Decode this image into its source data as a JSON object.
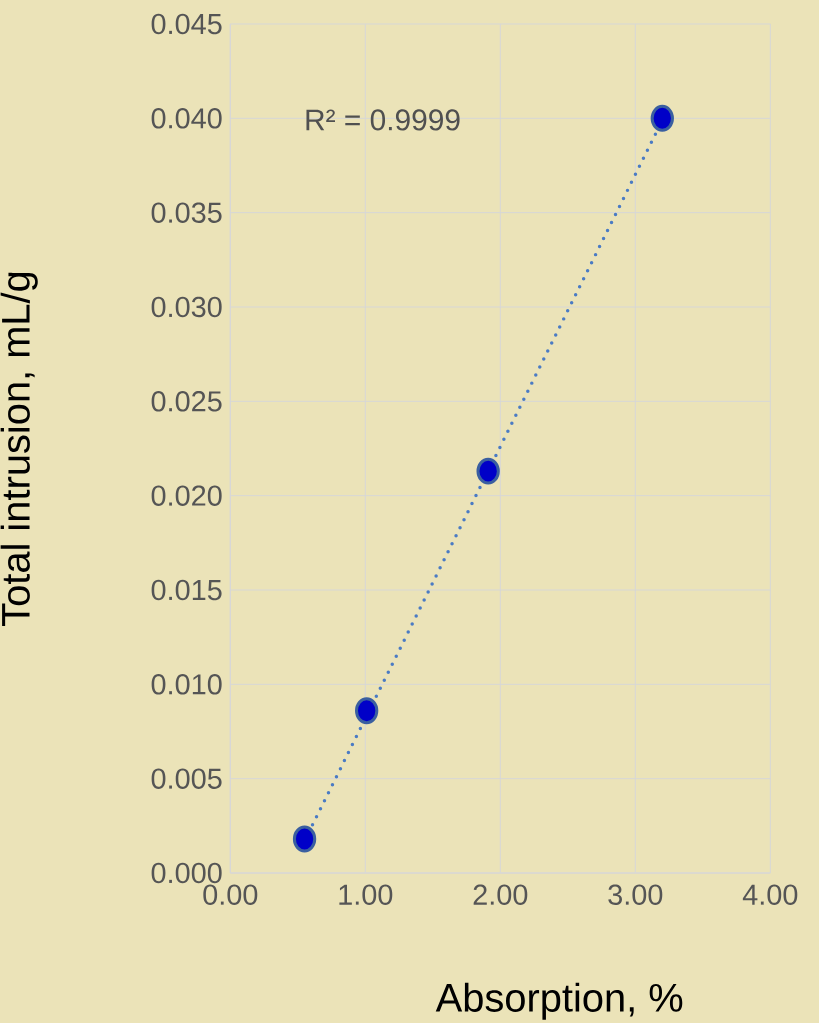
{
  "chart_data": {
    "type": "scatter",
    "xlabel": "Absorption, %",
    "ylabel": "Total intrusion, mL/g",
    "annotations": [
      "R² = 0.9999"
    ],
    "series": [
      {
        "type": "line",
        "x": [
          0.55,
          3.2
        ],
        "values": [
          0.0017,
          0.0399
        ],
        "color": "#4a7bc4",
        "line_style": "dotted",
        "marker": "none"
      },
      {
        "x": [
          0.55,
          1.01,
          1.91,
          3.2
        ],
        "values": [
          0.0018,
          0.0086,
          0.0213,
          0.04
        ],
        "color": "#0000c8",
        "marker": "circle"
      }
    ],
    "xlim": [
      0,
      4
    ],
    "ylim": [
      0,
      0.045
    ],
    "xticks": [
      {
        "value": 0,
        "label": "0.00"
      },
      {
        "value": 1,
        "label": "1.00"
      },
      {
        "value": 2,
        "label": "2.00"
      },
      {
        "value": 3,
        "label": "3.00"
      },
      {
        "value": 4,
        "label": "4.00"
      }
    ],
    "yticks": [
      {
        "value": 0,
        "label": "0.000"
      },
      {
        "value": 0.005,
        "label": "0.005"
      },
      {
        "value": 0.01,
        "label": "0.010"
      },
      {
        "value": 0.015,
        "label": "0.015"
      },
      {
        "value": 0.02,
        "label": "0.020"
      },
      {
        "value": 0.025,
        "label": "0.025"
      },
      {
        "value": 0.03,
        "label": "0.030"
      },
      {
        "value": 0.035,
        "label": "0.035"
      },
      {
        "value": 0.04,
        "label": "0.040"
      },
      {
        "value": 0.045,
        "label": "0.045"
      }
    ],
    "grid": true
  }
}
